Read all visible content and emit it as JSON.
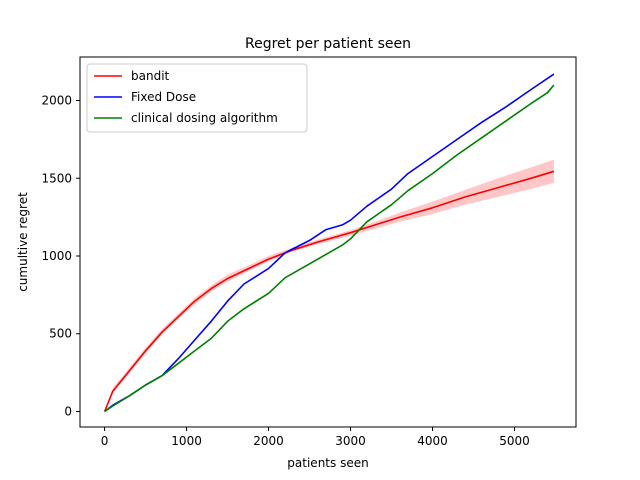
{
  "chart_data": {
    "type": "line",
    "title": "Regret per patient seen",
    "xlabel": "patients seen",
    "ylabel": "cumultive regret",
    "xlim": [
      -300,
      5750
    ],
    "ylim": [
      -100,
      2280
    ],
    "xticks": [
      0,
      1000,
      2000,
      3000,
      4000,
      5000
    ],
    "yticks": [
      0,
      500,
      1000,
      1500,
      2000
    ],
    "grid": false,
    "legend_position": "top-left",
    "series": [
      {
        "name": "bandit",
        "color": "#ff0000",
        "band_color": "#ff0000",
        "x": [
          0,
          100,
          300,
          500,
          700,
          900,
          1100,
          1300,
          1500,
          1800,
          2000,
          2300,
          2600,
          3000,
          3300,
          3600,
          4000,
          4400,
          4800,
          5200,
          5480
        ],
        "y": [
          0,
          130,
          260,
          390,
          510,
          610,
          710,
          790,
          855,
          930,
          980,
          1040,
          1090,
          1150,
          1200,
          1250,
          1310,
          1380,
          1440,
          1500,
          1545
        ],
        "y_lower": [
          0,
          120,
          245,
          375,
          495,
          595,
          690,
          770,
          835,
          915,
          965,
          1030,
          1075,
          1130,
          1175,
          1220,
          1270,
          1330,
          1380,
          1430,
          1470
        ],
        "y_upper": [
          0,
          150,
          280,
          410,
          530,
          630,
          730,
          810,
          880,
          950,
          1000,
          1055,
          1105,
          1165,
          1220,
          1280,
          1350,
          1425,
          1500,
          1570,
          1620
        ]
      },
      {
        "name": "Fixed Dose",
        "color": "#0000ff",
        "x": [
          0,
          100,
          300,
          500,
          700,
          900,
          1100,
          1300,
          1500,
          1700,
          2000,
          2200,
          2500,
          2700,
          2900,
          3000,
          3200,
          3500,
          3700,
          4000,
          4300,
          4600,
          4900,
          5200,
          5480
        ],
        "y": [
          0,
          40,
          100,
          170,
          230,
          340,
          460,
          580,
          710,
          820,
          920,
          1020,
          1100,
          1170,
          1200,
          1230,
          1320,
          1430,
          1530,
          1640,
          1750,
          1860,
          1960,
          2070,
          2170
        ]
      },
      {
        "name": "clinical dosing algorithm",
        "color": "#008000",
        "x": [
          0,
          100,
          300,
          500,
          700,
          900,
          1100,
          1300,
          1500,
          1700,
          2000,
          2200,
          2500,
          2700,
          2900,
          3000,
          3200,
          3500,
          3700,
          4000,
          4300,
          4600,
          4900,
          5200,
          5400,
          5480
        ],
        "y": [
          0,
          35,
          100,
          170,
          230,
          310,
          390,
          470,
          580,
          660,
          760,
          860,
          950,
          1010,
          1070,
          1110,
          1220,
          1330,
          1420,
          1530,
          1650,
          1760,
          1870,
          1980,
          2050,
          2100
        ]
      }
    ]
  }
}
